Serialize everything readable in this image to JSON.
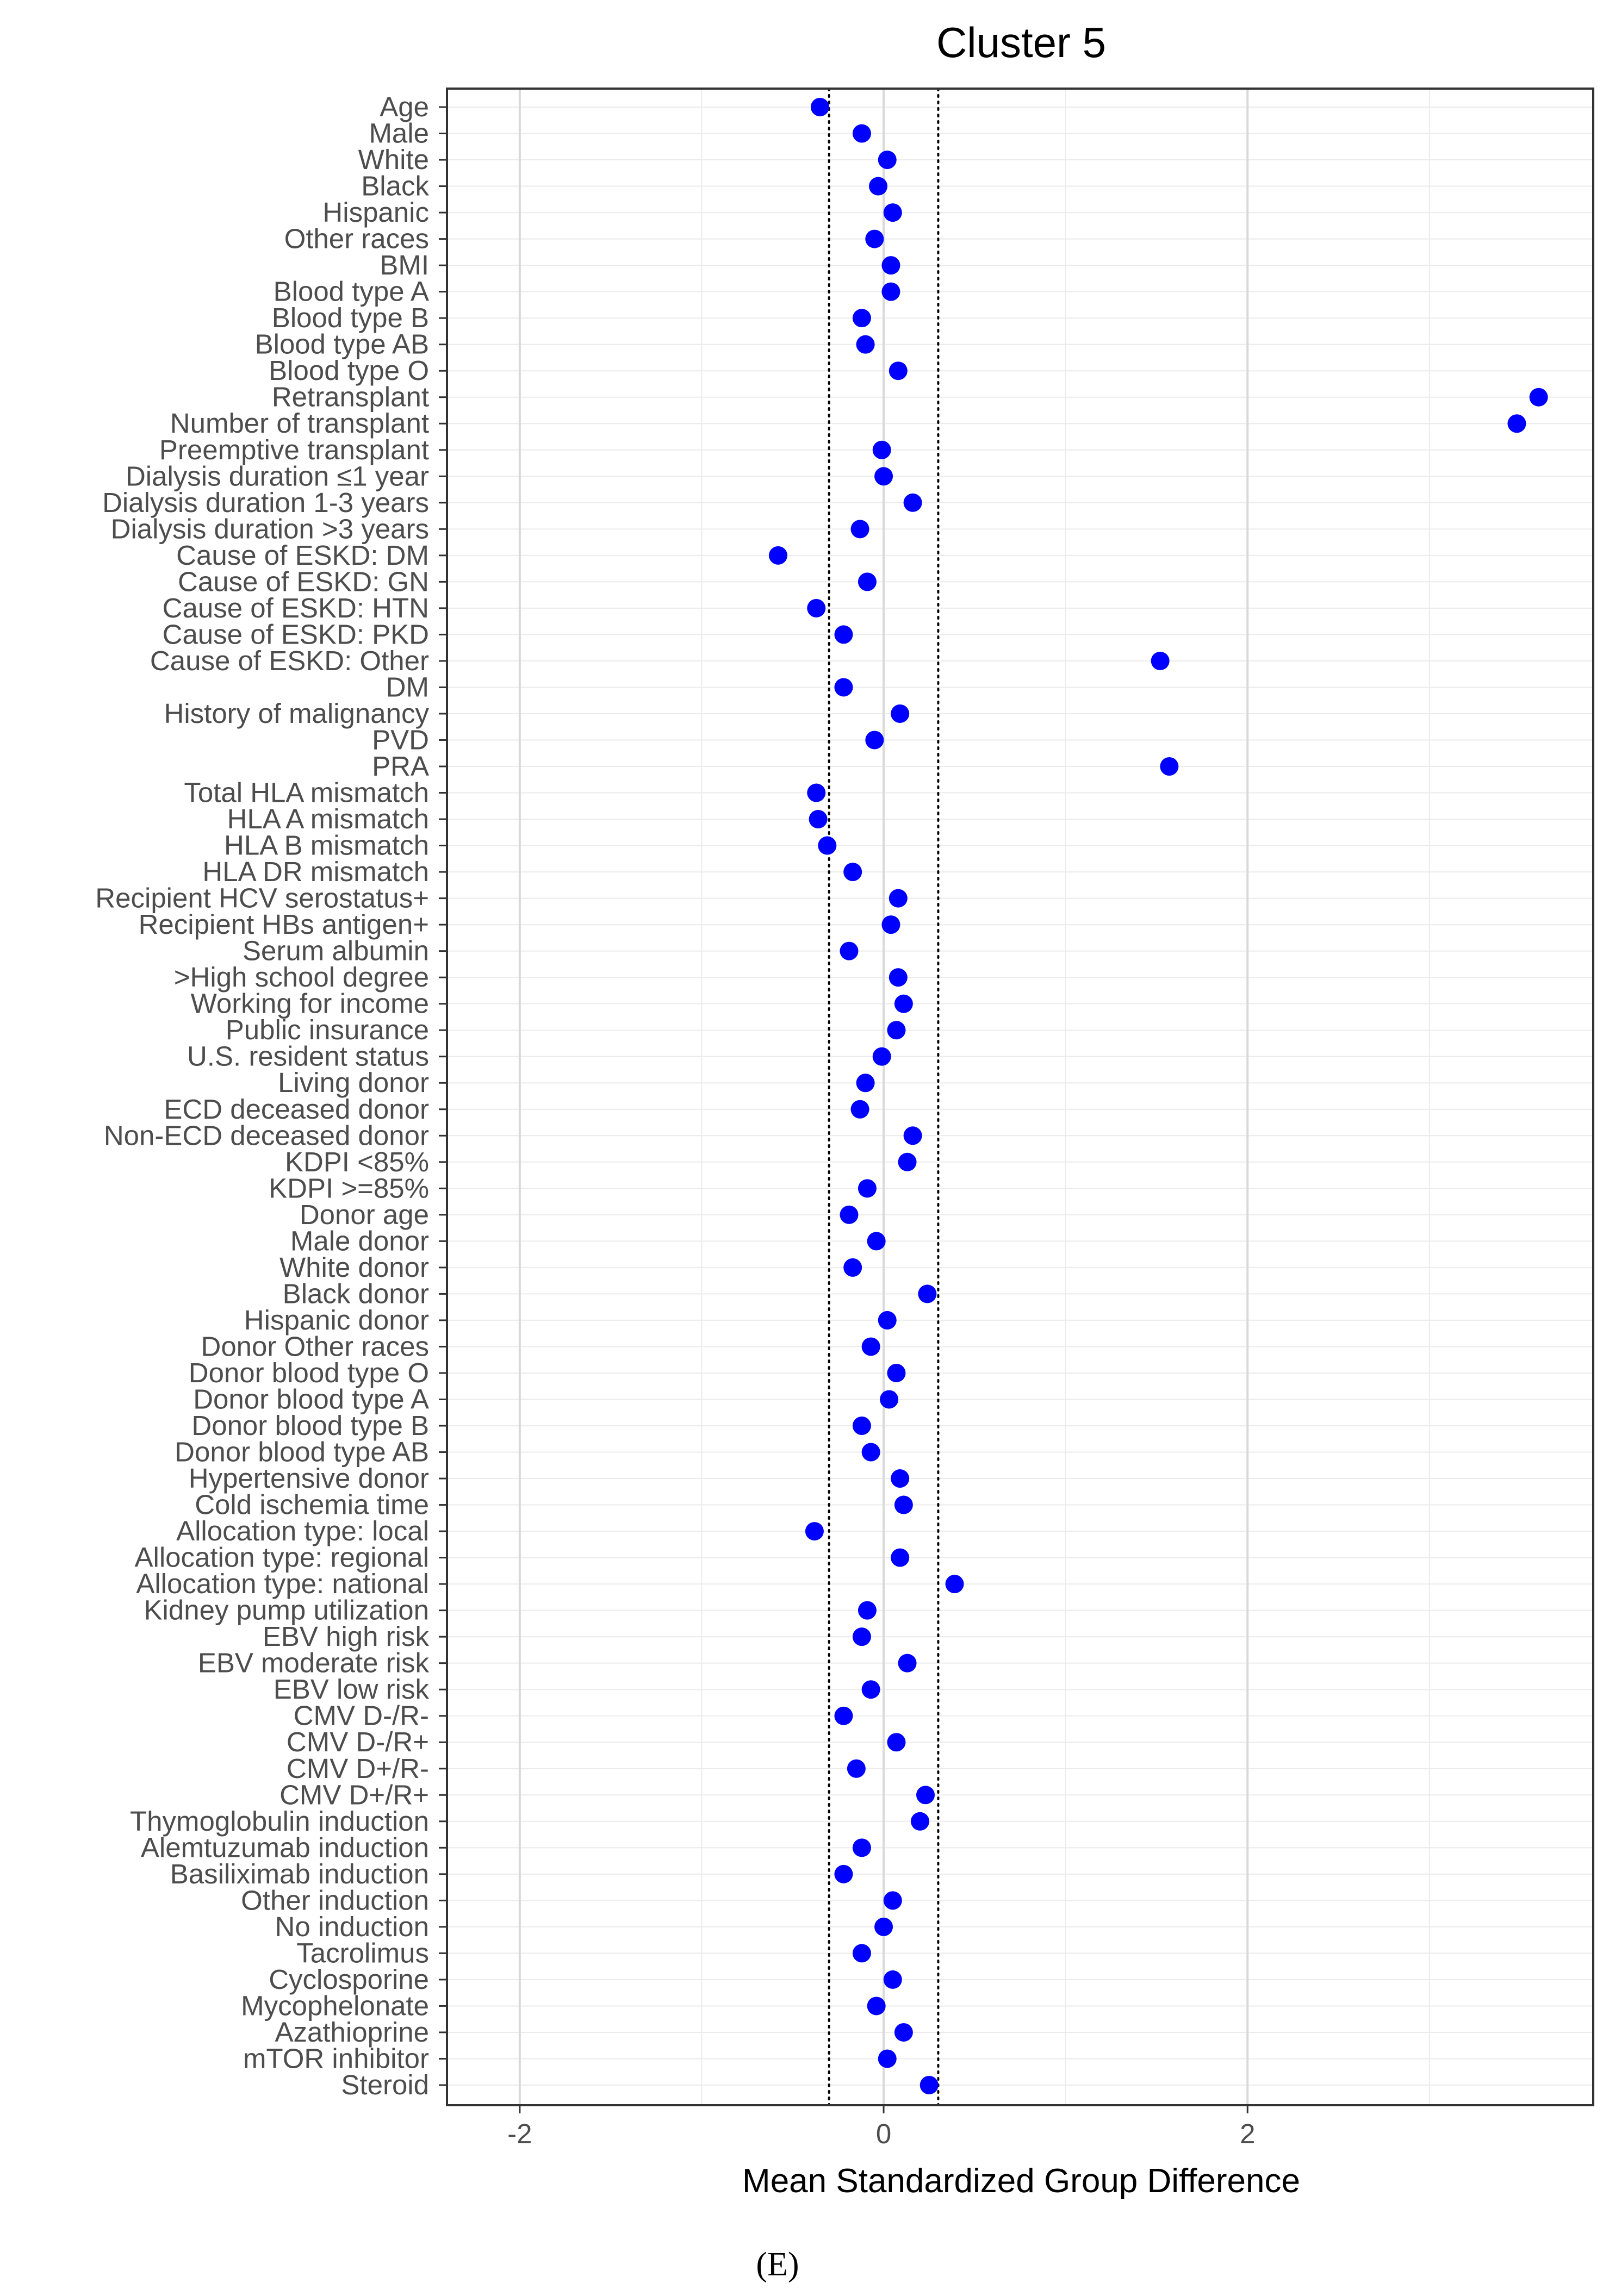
{
  "chart_data": {
    "type": "scatter",
    "title": "Cluster 5",
    "xlabel": "Mean Standardized Group Difference",
    "xlim": [
      -2.4,
      3.9
    ],
    "xticks": [
      -2,
      0,
      2
    ],
    "xtick_labels": [
      "-2",
      "0",
      "2"
    ],
    "reference_lines": [
      -0.3,
      0.3
    ],
    "point_color": "#0000ff",
    "grid": true,
    "caption": "(E)",
    "categories": [
      "Age",
      "Male",
      "White",
      "Black",
      "Hispanic",
      "Other races",
      "BMI",
      "Blood type A",
      "Blood type B",
      "Blood type AB",
      "Blood type O",
      "Retransplant",
      "Number of transplant",
      "Preemptive transplant",
      "Dialysis duration ≤1 year",
      "Dialysis duration 1-3 years",
      "Dialysis duration >3 years",
      "Cause of ESKD: DM",
      "Cause of ESKD: GN",
      "Cause of ESKD: HTN",
      "Cause of ESKD: PKD",
      "Cause of ESKD: Other",
      "DM",
      "History of malignancy",
      "PVD",
      "PRA",
      "Total HLA mismatch",
      "HLA A mismatch",
      "HLA B mismatch",
      "HLA DR mismatch",
      "Recipient HCV serostatus+",
      "Recipient HBs antigen+",
      "Serum albumin",
      ">High school degree",
      "Working for income",
      "Public insurance",
      "U.S. resident status",
      "Living donor",
      "ECD deceased donor",
      "Non-ECD deceased donor",
      "KDPI <85%",
      "KDPI >=85%",
      "Donor age",
      "Male donor",
      "White donor",
      "Black donor",
      "Hispanic donor",
      "Donor Other races",
      "Donor blood type O",
      "Donor blood type A",
      "Donor blood type B",
      "Donor blood type AB",
      "Hypertensive donor",
      "Cold ischemia time",
      "Allocation type: local",
      "Allocation type: regional",
      "Allocation type: national",
      "Kidney pump utilization",
      "EBV high risk",
      "EBV moderate risk",
      "EBV low risk",
      "CMV D-/R-",
      "CMV D-/R+",
      "CMV D+/R-",
      "CMV D+/R+",
      "Thymoglobulin induction",
      "Alemtuzumab induction",
      "Basiliximab induction",
      "Other induction",
      "No induction",
      "Tacrolimus",
      "Cyclosporine",
      "Mycophelonate",
      "Azathioprine",
      "mTOR inhibitor",
      "Steroid"
    ],
    "values": [
      -0.35,
      -0.12,
      0.02,
      -0.03,
      0.05,
      -0.05,
      0.04,
      0.04,
      -0.12,
      -0.1,
      0.08,
      3.6,
      3.48,
      -0.01,
      0.0,
      0.16,
      -0.13,
      -0.58,
      -0.09,
      -0.37,
      -0.22,
      1.52,
      -0.22,
      0.09,
      -0.05,
      1.57,
      -0.37,
      -0.36,
      -0.31,
      -0.17,
      0.08,
      0.04,
      -0.19,
      0.08,
      0.11,
      0.07,
      -0.01,
      -0.1,
      -0.13,
      0.16,
      0.13,
      -0.09,
      -0.19,
      -0.04,
      -0.17,
      0.24,
      0.02,
      -0.07,
      0.07,
      0.03,
      -0.12,
      -0.07,
      0.09,
      0.11,
      -0.38,
      0.09,
      0.39,
      -0.09,
      -0.12,
      0.13,
      -0.07,
      -0.22,
      0.07,
      -0.15,
      0.23,
      0.2,
      -0.12,
      -0.22,
      0.05,
      0.0,
      -0.12,
      0.05,
      -0.04,
      0.11,
      0.02,
      0.25
    ]
  }
}
